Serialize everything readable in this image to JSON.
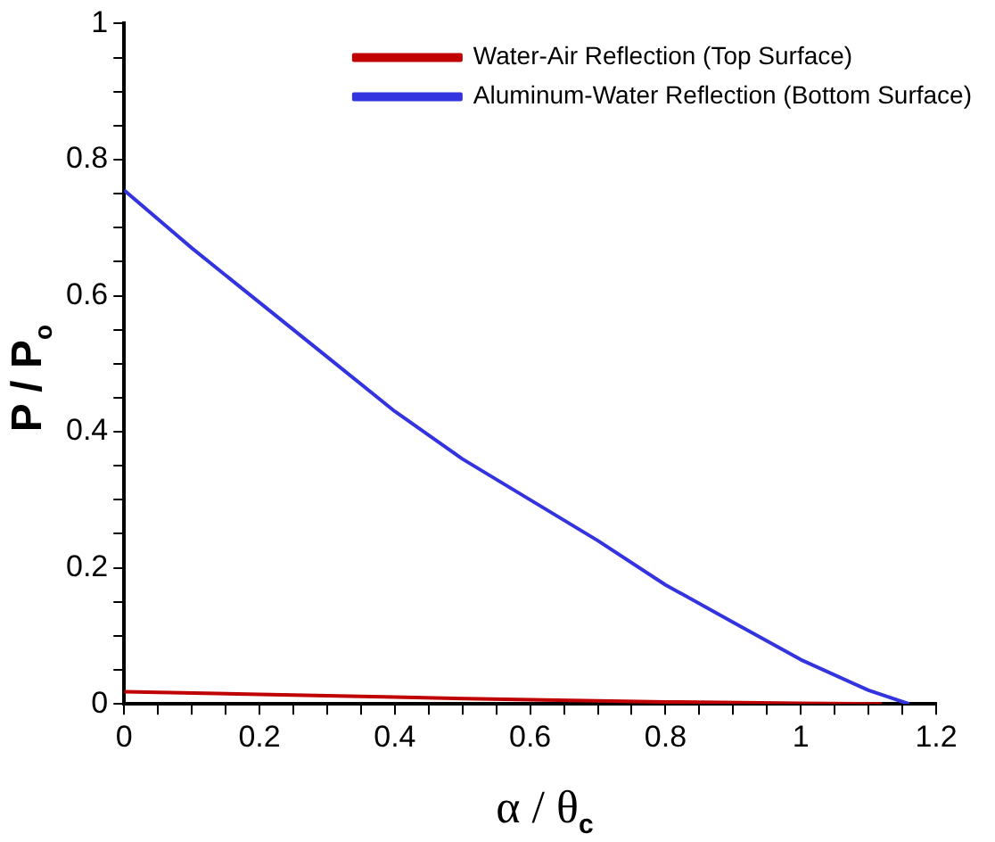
{
  "chart_data": {
    "type": "line",
    "xlabel": "α / θ$_{c}$",
    "ylabel": "P / P$_{o}$",
    "series": [
      {
        "name": "Water-Air Reflection (Top Surface)",
        "color": "#c00000",
        "x": [
          0,
          0.2,
          0.4,
          0.6,
          0.8,
          1.0,
          1.12
        ],
        "values": [
          0.018,
          0.014,
          0.01,
          0.006,
          0.003,
          0.001,
          0
        ]
      },
      {
        "name": "Aluminum-Water Reflection (Bottom Surface)",
        "color": "#3333e0",
        "x": [
          0,
          0.1,
          0.2,
          0.3,
          0.4,
          0.5,
          0.6,
          0.7,
          0.8,
          0.9,
          1.0,
          1.1,
          1.16
        ],
        "values": [
          0.755,
          0.67,
          0.59,
          0.51,
          0.43,
          0.36,
          0.3,
          0.24,
          0.175,
          0.12,
          0.065,
          0.02,
          0
        ]
      }
    ],
    "xlim": [
      0,
      1.2
    ],
    "ylim": [
      0,
      1
    ],
    "xticks": [
      0,
      {
        "value": 0.05,
        "label": null
      },
      {
        "value": 0.1,
        "label": null
      },
      {
        "value": 0.15,
        "label": null
      },
      0.2,
      {
        "value": 0.25,
        "label": null
      },
      {
        "value": 0.3,
        "label": null
      },
      {
        "value": 0.35,
        "label": null
      },
      0.4,
      {
        "value": 0.45,
        "label": null
      },
      {
        "value": 0.5,
        "label": null
      },
      {
        "value": 0.55,
        "label": null
      },
      0.6,
      {
        "value": 0.65,
        "label": null
      },
      {
        "value": 0.7,
        "label": null
      },
      {
        "value": 0.75,
        "label": null
      },
      0.8,
      {
        "value": 0.85,
        "label": null
      },
      {
        "value": 0.9,
        "label": null
      },
      {
        "value": 0.95,
        "label": null
      },
      1,
      {
        "value": 1.05,
        "label": null
      },
      {
        "value": 1.1,
        "label": null
      },
      {
        "value": 1.15,
        "label": null
      },
      1.2
    ],
    "yticks": [
      0,
      {
        "value": 0.05,
        "label": null
      },
      {
        "value": 0.1,
        "label": null
      },
      {
        "value": 0.15,
        "label": null
      },
      0.2,
      {
        "value": 0.25,
        "label": null
      },
      {
        "value": 0.3,
        "label": null
      },
      {
        "value": 0.35,
        "label": null
      },
      0.4,
      {
        "value": 0.45,
        "label": null
      },
      {
        "value": 0.5,
        "label": null
      },
      {
        "value": 0.55,
        "label": null
      },
      0.6,
      {
        "value": 0.65,
        "label": null
      },
      {
        "value": 0.7,
        "label": null
      },
      {
        "value": 0.75,
        "label": null
      },
      0.8,
      {
        "value": 0.85,
        "label": null
      },
      {
        "value": 0.9,
        "label": null
      },
      {
        "value": 0.95,
        "label": null
      },
      1
    ],
    "grid": false,
    "legend": "top right",
    "marker": "none",
    "line_style": "solid"
  }
}
